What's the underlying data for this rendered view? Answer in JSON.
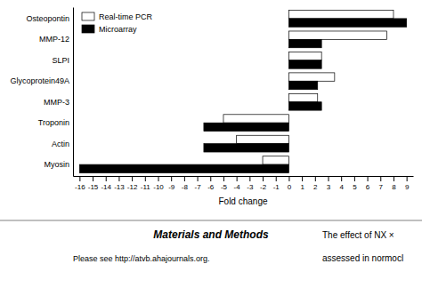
{
  "chart_data": {
    "type": "bar",
    "orientation": "horizontal",
    "categories": [
      "Osteopontin",
      "MMP-12",
      "SLPI",
      "Glycoprotein49A",
      "MMP-3",
      "Troponin",
      "Actin",
      "Myosin"
    ],
    "series": [
      {
        "name": "Real-time PCR",
        "color": "#ffffff",
        "values": [
          8.0,
          7.5,
          2.5,
          3.5,
          2.2,
          -5.0,
          -4.0,
          -2.0
        ]
      },
      {
        "name": "Microarray",
        "color": "#000000",
        "values": [
          9.0,
          2.5,
          2.5,
          2.2,
          2.5,
          -6.5,
          -6.5,
          -16.0
        ]
      }
    ],
    "xlabel": "Fold change",
    "xlim": [
      -16.5,
      9.5
    ],
    "xticks": [
      -16,
      -15,
      -14,
      -13,
      -12,
      -11,
      -10,
      -9,
      -8,
      -7,
      -6,
      -5,
      -4,
      -3,
      -2,
      -1,
      0,
      1,
      2,
      3,
      4,
      5,
      6,
      7,
      8,
      9
    ],
    "grid": false,
    "legend": "upper left",
    "annotations": [
      "Materials and Methods",
      "Please see http://atvb.ahajournals.org.",
      "The effect of NX ×",
      "assessed in normocl"
    ]
  }
}
